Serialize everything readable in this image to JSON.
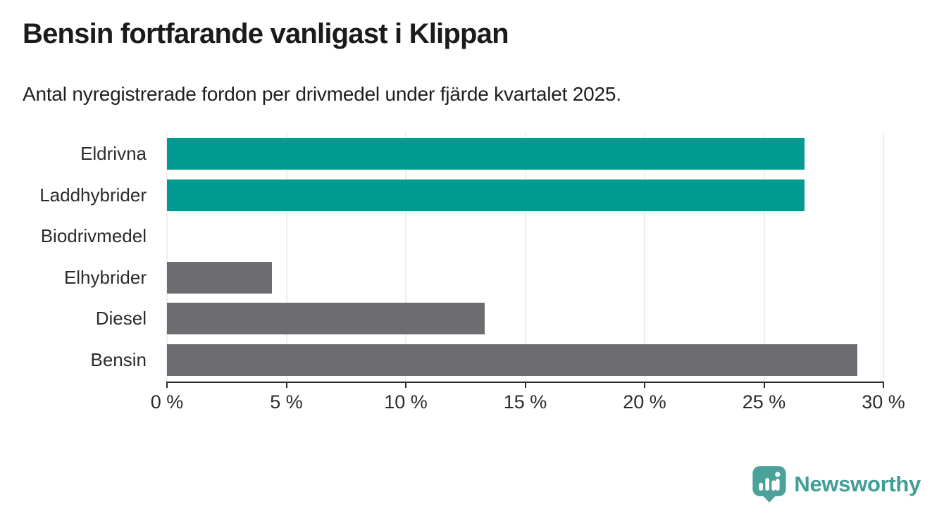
{
  "header": {
    "title": "Bensin fortfarande vanligast i Klippan",
    "subtitle": "Antal nyregistrerade fordon per drivmedel under fjärde kvartalet 2025."
  },
  "chart_data": {
    "type": "bar",
    "orientation": "horizontal",
    "categories": [
      "Eldrivna",
      "Laddhybrider",
      "Biodrivmedel",
      "Elhybrider",
      "Diesel",
      "Bensin"
    ],
    "values": [
      26.7,
      26.7,
      0,
      4.4,
      13.3,
      28.9
    ],
    "unit": "%",
    "bar_colors": [
      "#009a91",
      "#009a91",
      "#6c6c71",
      "#6c6c71",
      "#6c6c71",
      "#6c6c71"
    ],
    "xlim": [
      0,
      30
    ],
    "x_ticks": [
      0,
      5,
      10,
      15,
      20,
      25,
      30
    ],
    "x_tick_labels": [
      "0 %",
      "5 %",
      "10 %",
      "15 %",
      "20 %",
      "25 %",
      "30 %"
    ],
    "grid": "vertical",
    "legend": "none",
    "title": "Bensin fortfarande vanligast i Klippan",
    "xlabel": "",
    "ylabel": ""
  },
  "branding": {
    "logo_text": "Newsworthy",
    "logo_icon": "speech-bubble-bar-chart-icon",
    "logo_color": "#4ba29b",
    "logo_text_color": "#3f9d96"
  },
  "colors": {
    "accent_teal": "#009a91",
    "neutral_gray": "#6c6c71",
    "gridline": "#dcdcdc",
    "axis": "#2b2b2b",
    "background": "#ffffff"
  }
}
